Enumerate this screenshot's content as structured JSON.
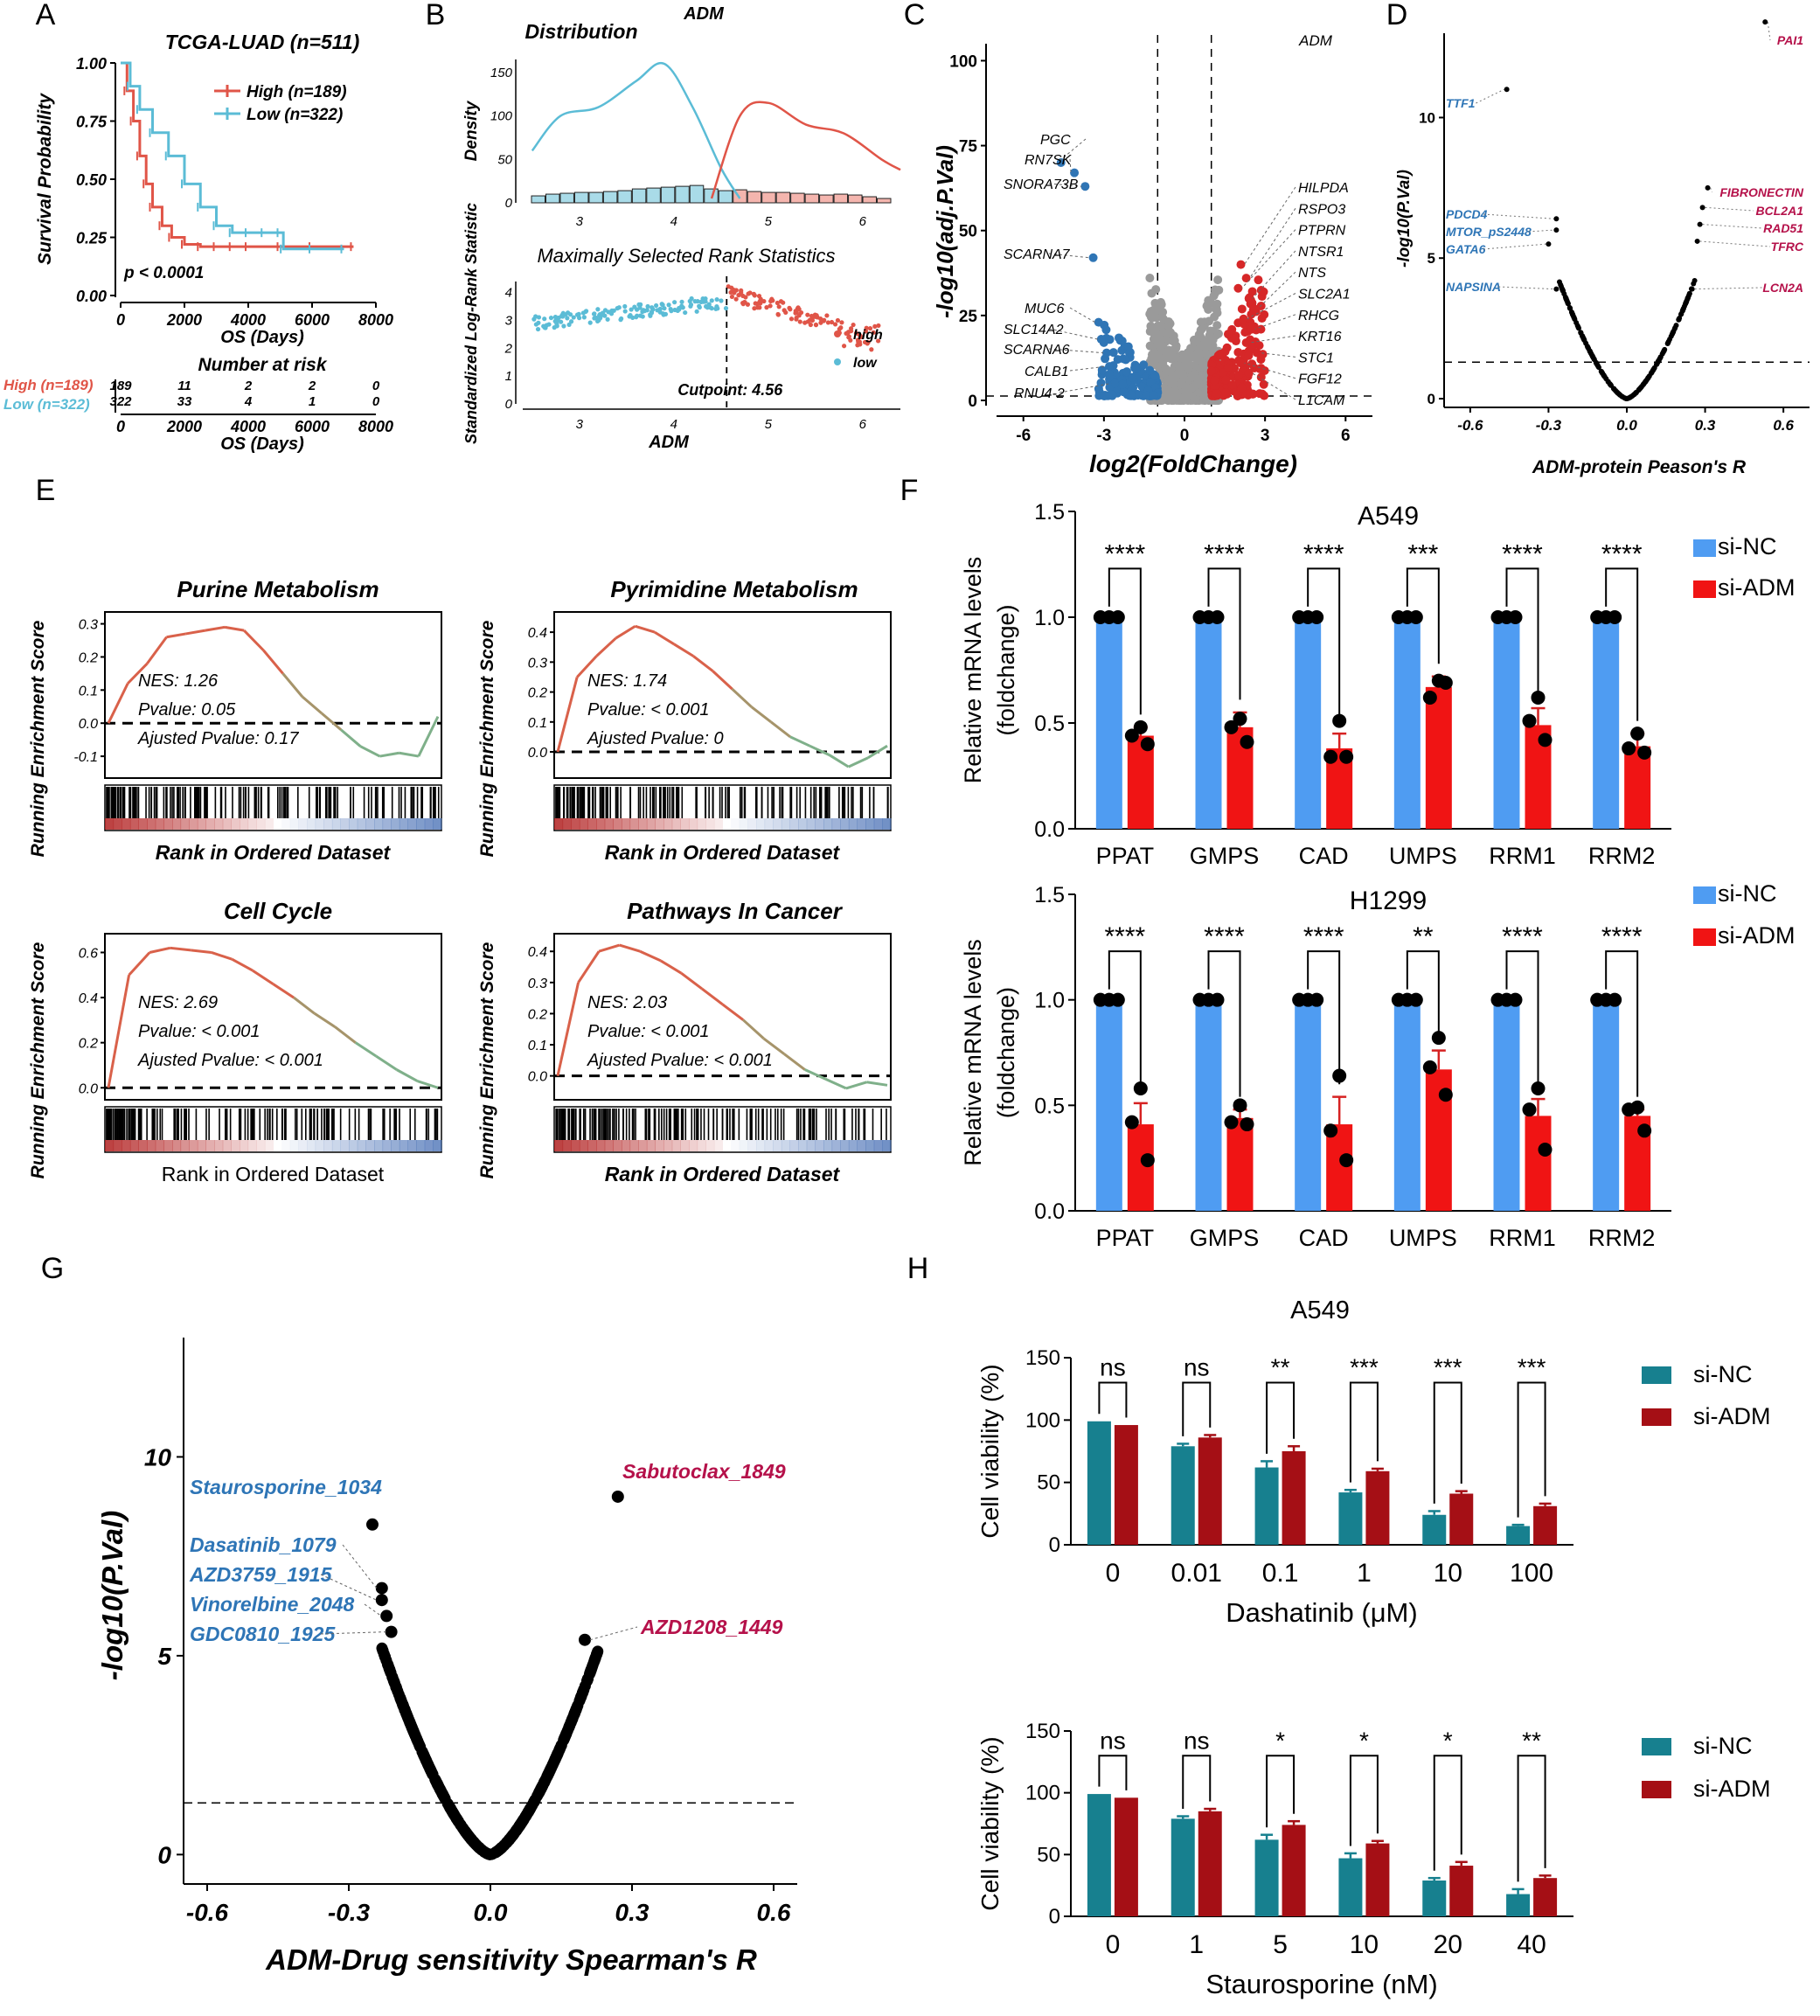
{
  "colors": {
    "red": "#e05548",
    "cyan": "#5bbcd6",
    "blue_vol": "#2f75b5",
    "red_vol": "#d62728",
    "grey": "#9a9a9a",
    "bar_blue": "#4f9cf2",
    "bar_red": "#f01414",
    "teal": "#17808f",
    "darkred": "#a50f15",
    "blue_lbl": "#2e75b6",
    "crimson_lbl": "#b5114a"
  },
  "panel_letters": [
    "A",
    "B",
    "C",
    "D",
    "E",
    "F",
    "G",
    "H"
  ],
  "chart_data": [
    {
      "id": "A",
      "type": "line",
      "title": "TCGA-LUAD (n=511)",
      "xlabel": "OS (Days)",
      "ylabel": "Survival Probability",
      "xlim": [
        0,
        8000
      ],
      "ylim": [
        0,
        1
      ],
      "xticks": [
        "0",
        "2000",
        "4000",
        "6000",
        "8000"
      ],
      "yticks": [
        "0.00",
        "0.25",
        "0.50",
        "0.75",
        "1.00"
      ],
      "pvalue": "p < 0.0001",
      "series": [
        {
          "name": "High (n=189)",
          "x": [
            0,
            200,
            400,
            600,
            800,
            1000,
            1300,
            1600,
            2000,
            2500,
            3000,
            3500,
            4000,
            5000,
            6000,
            7300
          ],
          "y": [
            1.0,
            0.88,
            0.75,
            0.6,
            0.48,
            0.38,
            0.3,
            0.25,
            0.22,
            0.21,
            0.21,
            0.21,
            0.21,
            0.21,
            0.21,
            0.21
          ]
        },
        {
          "name": "Low (n=322)",
          "x": [
            0,
            300,
            600,
            1000,
            1500,
            2000,
            2500,
            3000,
            3500,
            4000,
            4500,
            5000,
            5100,
            6000,
            7000
          ],
          "y": [
            1.0,
            0.9,
            0.8,
            0.7,
            0.6,
            0.48,
            0.38,
            0.3,
            0.27,
            0.27,
            0.27,
            0.27,
            0.2,
            0.2,
            0.2
          ]
        }
      ],
      "risk_table": {
        "title": "Number at risk",
        "rows": [
          {
            "label": "High (n=189)",
            "values": [
              "189",
              "11",
              "2",
              "2",
              "0"
            ]
          },
          {
            "label": "Low (n=322)",
            "values": [
              "322",
              "33",
              "4",
              "1",
              "0"
            ]
          }
        ],
        "xlabel": "OS (Days)"
      }
    },
    {
      "id": "B",
      "type": "area",
      "gene": "ADM",
      "top_title": "Distribution",
      "top_ylabel": "Density",
      "top_yticks": [
        "0",
        "50",
        "100",
        "150"
      ],
      "top_xticks": [
        "3",
        "4",
        "5",
        "6"
      ],
      "xlim": [
        2.4,
        6.4
      ],
      "density_low": {
        "x": [
          2.5,
          2.8,
          3.2,
          3.6,
          3.9,
          4.2,
          4.5,
          4.7
        ],
        "y": [
          60,
          100,
          110,
          140,
          160,
          110,
          40,
          5
        ]
      },
      "density_high": {
        "x": [
          4.4,
          4.7,
          5.0,
          5.4,
          5.8,
          6.2,
          6.4
        ],
        "y": [
          5,
          100,
          115,
          90,
          80,
          50,
          38
        ]
      },
      "hist_values": [
        8,
        10,
        11,
        12,
        12,
        13,
        14,
        16,
        17,
        18,
        19,
        20,
        16,
        14,
        15,
        13,
        12,
        12,
        11,
        10,
        9,
        10,
        9,
        7,
        5
      ],
      "bottom_title": "Maximally Selected Rank Statistics",
      "bottom_ylabel": "Standardized Log-Rank Statistic",
      "bottom_xlabel": "ADM",
      "bottom_yticks": [
        "0",
        "1",
        "2",
        "3",
        "4"
      ],
      "bottom_xticks": [
        "3",
        "4",
        "5",
        "6"
      ],
      "cutpoint": 4.56,
      "cutpoint_label": "Cutpoint: 4.56",
      "legend": [
        "high",
        "low"
      ]
    },
    {
      "id": "C",
      "type": "scatter",
      "label": "ADM",
      "xlabel": "log2(FoldChange)",
      "ylabel": "-log10(adj.P.Val)",
      "xlim": [
        -7,
        7
      ],
      "ylim": [
        0,
        105
      ],
      "xticks": [
        "-6",
        "-3",
        "0",
        "3",
        "6"
      ],
      "yticks": [
        "0",
        "25",
        "50",
        "75",
        "100"
      ],
      "left_genes": [
        {
          "name": "PGC",
          "x": -4.6,
          "y": 70
        },
        {
          "name": "RN7SK",
          "x": -4.1,
          "y": 67
        },
        {
          "name": "SNORA73B",
          "x": -3.7,
          "y": 63
        },
        {
          "name": "SCARNA7",
          "x": -3.4,
          "y": 42
        },
        {
          "name": "MUC6",
          "x": -3.2,
          "y": 23
        },
        {
          "name": "SLC14A2",
          "x": -3.1,
          "y": 18
        },
        {
          "name": "SCARNA6",
          "x": -2.9,
          "y": 14
        },
        {
          "name": "CALB1",
          "x": -2.8,
          "y": 10
        },
        {
          "name": "RNU4-2",
          "x": -2.6,
          "y": 5
        }
      ],
      "right_genes": [
        {
          "name": "HILPDA",
          "x": 2.1,
          "y": 40
        },
        {
          "name": "RSPO3",
          "x": 2.3,
          "y": 36
        },
        {
          "name": "PTPRN",
          "x": 2.0,
          "y": 33
        },
        {
          "name": "NTSR1",
          "x": 2.4,
          "y": 30
        },
        {
          "name": "NTS",
          "x": 2.6,
          "y": 27
        },
        {
          "name": "SLC2A1",
          "x": 2.2,
          "y": 24
        },
        {
          "name": "RHCG",
          "x": 2.5,
          "y": 21
        },
        {
          "name": "KRT16",
          "x": 2.3,
          "y": 17
        },
        {
          "name": "STC1",
          "x": 2.7,
          "y": 14
        },
        {
          "name": "FGF12",
          "x": 2.1,
          "y": 11
        },
        {
          "name": "L1CAM",
          "x": 2.4,
          "y": 8
        }
      ]
    },
    {
      "id": "D",
      "type": "scatter",
      "xlabel": "ADM-protein Peason's R",
      "ylabel": "-log10(P.Val)",
      "xlim": [
        -0.7,
        0.7
      ],
      "ylim": [
        0,
        13
      ],
      "xticks": [
        "-0.6",
        "-0.3",
        "0.0",
        "0.3",
        "0.6"
      ],
      "yticks": [
        "0",
        "5",
        "10"
      ],
      "left_labels": [
        {
          "name": "TTF1",
          "x": -0.46,
          "y": 11
        },
        {
          "name": "PDCD4",
          "x": -0.27,
          "y": 6.4
        },
        {
          "name": "MTOR_pS2448",
          "x": -0.27,
          "y": 6.0
        },
        {
          "name": "GATA6",
          "x": -0.3,
          "y": 5.5
        },
        {
          "name": "NAPSINA",
          "x": -0.27,
          "y": 3.9
        }
      ],
      "right_labels": [
        {
          "name": "PAI1",
          "x": 0.53,
          "y": 13.4
        },
        {
          "name": "FIBRONECTIN",
          "x": 0.31,
          "y": 7.5
        },
        {
          "name": "BCL2A1",
          "x": 0.29,
          "y": 6.8
        },
        {
          "name": "RAD51",
          "x": 0.28,
          "y": 6.2
        },
        {
          "name": "TFRC",
          "x": 0.27,
          "y": 5.6
        },
        {
          "name": "LCN2A",
          "x": 0.25,
          "y": 3.9
        }
      ]
    },
    {
      "id": "E",
      "type": "line",
      "ylabel": "Running Enrichment Score",
      "subplots": [
        {
          "title": "Purine Metabolism",
          "xlabel": "Rank in Ordered Dataset",
          "yticks": [
            "-0.1",
            "0.0",
            "0.1",
            "0.2",
            "0.3"
          ],
          "ylim": [
            -0.15,
            0.32
          ],
          "curve": [
            0,
            0.12,
            0.18,
            0.26,
            0.27,
            0.28,
            0.29,
            0.28,
            0.22,
            0.15,
            0.08,
            0.03,
            -0.02,
            -0.07,
            -0.1,
            -0.09,
            -0.1,
            0.02
          ],
          "stats": [
            "NES: 1.26",
            "Pvalue: 0.05",
            "Ajusted Pvalue: 0.17"
          ]
        },
        {
          "title": "Pyrimidine Metabolism",
          "xlabel": "Rank in Ordered Dataset",
          "yticks": [
            "0.0",
            "0.1",
            "0.2",
            "0.3",
            "0.4"
          ],
          "ylim": [
            -0.07,
            0.45
          ],
          "curve": [
            0,
            0.25,
            0.32,
            0.38,
            0.42,
            0.4,
            0.36,
            0.32,
            0.27,
            0.21,
            0.15,
            0.1,
            0.05,
            0.02,
            -0.01,
            -0.05,
            -0.02,
            0.02
          ],
          "stats": [
            "NES: 1.74",
            "Pvalue: < 0.001",
            "Ajusted Pvalue: 0"
          ]
        },
        {
          "title": "Cell Cycle",
          "xlabel": "Rank in Ordered Dataset",
          "yticks": [
            "0.0",
            "0.2",
            "0.4",
            "0.6"
          ],
          "ylim": [
            -0.03,
            0.66
          ],
          "curve": [
            0,
            0.5,
            0.6,
            0.62,
            0.61,
            0.6,
            0.57,
            0.52,
            0.46,
            0.4,
            0.33,
            0.27,
            0.2,
            0.14,
            0.08,
            0.03,
            0.0
          ],
          "stats": [
            "NES: 2.69",
            "Pvalue: < 0.001",
            "Ajusted Pvalue: < 0.001"
          ]
        },
        {
          "title": "Pathways In Cancer",
          "xlabel": "Rank in Ordered Dataset",
          "yticks": [
            "0.0",
            "0.1",
            "0.2",
            "0.3",
            "0.4"
          ],
          "ylim": [
            -0.06,
            0.44
          ],
          "curve": [
            0,
            0.3,
            0.4,
            0.42,
            0.4,
            0.37,
            0.33,
            0.28,
            0.23,
            0.18,
            0.12,
            0.07,
            0.02,
            -0.01,
            -0.04,
            -0.02,
            -0.03
          ],
          "stats": [
            "NES: 2.03",
            "Pvalue: < 0.001",
            "Ajusted Pvalue: < 0.001"
          ]
        }
      ]
    },
    {
      "id": "F",
      "type": "bar",
      "ylabel": "Relative mRNA levels (foldchange)",
      "categories": [
        "PPAT",
        "GMPS",
        "CAD",
        "UMPS",
        "RRM1",
        "RRM2"
      ],
      "legend": [
        "si-NC",
        "si-ADM"
      ],
      "yticks": [
        "0.0",
        "0.5",
        "1.0",
        "1.5"
      ],
      "ylim": [
        0,
        1.5
      ],
      "subplots": [
        {
          "title": "A549",
          "series": [
            {
              "name": "si-NC",
              "values": [
                1,
                1,
                1,
                1,
                1,
                1
              ]
            },
            {
              "name": "si-ADM",
              "values": [
                0.44,
                0.48,
                0.38,
                0.67,
                0.49,
                0.39
              ]
            }
          ],
          "errors": [
            0.04,
            0.07,
            0.07,
            0.05,
            0.08,
            0.06
          ],
          "points": [
            [
              0.48,
              0.44,
              0.4
            ],
            [
              0.52,
              0.48,
              0.41
            ],
            [
              0.51,
              0.34,
              0.34
            ],
            [
              0.7,
              0.62,
              0.69
            ],
            [
              0.62,
              0.51,
              0.42
            ],
            [
              0.45,
              0.38,
              0.36
            ]
          ],
          "significance": [
            "****",
            "****",
            "****",
            "***",
            "****",
            "****"
          ]
        },
        {
          "title": "H1299",
          "series": [
            {
              "name": "si-NC",
              "values": [
                1,
                1,
                1,
                1,
                1,
                1
              ]
            },
            {
              "name": "si-ADM",
              "values": [
                0.41,
                0.44,
                0.41,
                0.67,
                0.45,
                0.45
              ]
            }
          ],
          "errors": [
            0.1,
            0.04,
            0.13,
            0.09,
            0.08,
            0.03
          ],
          "points": [
            [
              0.58,
              0.42,
              0.24
            ],
            [
              0.5,
              0.42,
              0.41
            ],
            [
              0.64,
              0.38,
              0.24
            ],
            [
              0.82,
              0.68,
              0.55
            ],
            [
              0.58,
              0.48,
              0.29
            ],
            [
              0.49,
              0.48,
              0.38
            ]
          ],
          "significance": [
            "****",
            "****",
            "****",
            "**",
            "****",
            "****"
          ]
        }
      ]
    },
    {
      "id": "G",
      "type": "scatter",
      "xlabel": "ADM-Drug sensitivity Spearman's R",
      "ylabel": "-log10(P.Val)",
      "xlim": [
        -0.65,
        0.65
      ],
      "ylim": [
        -0.3,
        13
      ],
      "xticks": [
        "-0.6",
        "-0.3",
        "0.0",
        "0.3",
        "0.6"
      ],
      "yticks": [
        "0",
        "5",
        "10"
      ],
      "left_labels": [
        {
          "name": "Staurosporine_1034",
          "x": -0.25,
          "y": 8.3
        },
        {
          "name": "Dasatinib_1079",
          "x": -0.23,
          "y": 6.7
        },
        {
          "name": "AZD3759_1915",
          "x": -0.23,
          "y": 6.4
        },
        {
          "name": "Vinorelbine_2048",
          "x": -0.22,
          "y": 6.0
        },
        {
          "name": "GDC0810_1925",
          "x": -0.21,
          "y": 5.6
        }
      ],
      "right_labels": [
        {
          "name": "Sabutoclax_1849",
          "x": 0.27,
          "y": 9.0
        },
        {
          "name": "AZD1208_1449",
          "x": 0.2,
          "y": 5.4
        }
      ]
    },
    {
      "id": "H",
      "type": "bar",
      "title": "A549",
      "ylabel": "Cell viability (%)",
      "legend": [
        "si-NC",
        "si-ADM"
      ],
      "yticks": [
        "0",
        "50",
        "100",
        "150"
      ],
      "ylim": [
        0,
        150
      ],
      "subplots": [
        {
          "xlabel": "Dashatinib (μM)",
          "categories": [
            "0",
            "0.01",
            "0.1",
            "1",
            "10",
            "100"
          ],
          "series": [
            {
              "name": "si-NC",
              "values": [
                99,
                79,
                62,
                42,
                24,
                15
              ]
            },
            {
              "name": "si-ADM",
              "values": [
                96,
                86,
                75,
                59,
                41,
                31
              ]
            }
          ],
          "errors": [
            [
              0,
              0
            ],
            [
              2,
              2
            ],
            [
              5,
              4
            ],
            [
              2,
              2
            ],
            [
              3,
              2
            ],
            [
              1,
              2
            ]
          ],
          "significance": [
            "ns",
            "ns",
            "**",
            "***",
            "***",
            "***"
          ]
        },
        {
          "xlabel": "Staurosporine (nM)",
          "categories": [
            "0",
            "1",
            "5",
            "10",
            "20",
            "40"
          ],
          "series": [
            {
              "name": "si-NC",
              "values": [
                99,
                79,
                62,
                47,
                29,
                18
              ]
            },
            {
              "name": "si-ADM",
              "values": [
                96,
                85,
                74,
                59,
                41,
                31
              ]
            }
          ],
          "errors": [
            [
              0,
              0
            ],
            [
              2,
              2
            ],
            [
              4,
              3
            ],
            [
              4,
              2
            ],
            [
              2,
              3
            ],
            [
              4,
              2
            ]
          ],
          "significance": [
            "ns",
            "ns",
            "*",
            "*",
            "*",
            "**"
          ]
        }
      ]
    }
  ]
}
